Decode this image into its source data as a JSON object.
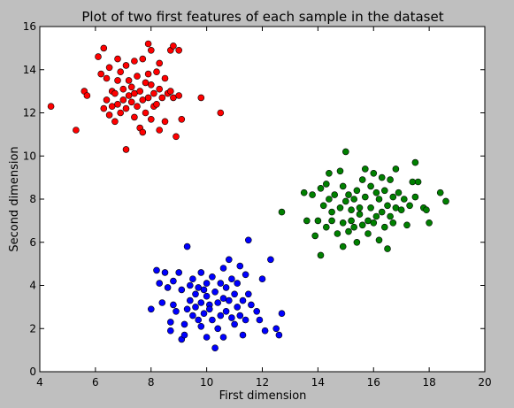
{
  "chart_data": {
    "type": "scatter",
    "title": "Plot of two first features of each sample in the dataset",
    "xlabel": "First dimension",
    "ylabel": "Second dimension",
    "xlim": [
      4,
      20
    ],
    "ylim": [
      0,
      16
    ],
    "x_ticks": [
      "4",
      "6",
      "8",
      "10",
      "12",
      "14",
      "16",
      "18",
      "20"
    ],
    "y_ticks": [
      "0",
      "2",
      "4",
      "6",
      "8",
      "10",
      "12",
      "14",
      "16"
    ],
    "grid": false,
    "legend": "none",
    "series": [
      {
        "color": "#ff0000",
        "points": [
          [
            4.4,
            12.3
          ],
          [
            5.3,
            11.2
          ],
          [
            5.6,
            13.0
          ],
          [
            5.7,
            12.8
          ],
          [
            6.1,
            14.6
          ],
          [
            6.2,
            13.8
          ],
          [
            6.3,
            15.0
          ],
          [
            6.3,
            12.2
          ],
          [
            6.4,
            13.6
          ],
          [
            6.4,
            12.6
          ],
          [
            6.5,
            14.1
          ],
          [
            6.5,
            11.9
          ],
          [
            6.6,
            13.0
          ],
          [
            6.6,
            12.3
          ],
          [
            6.7,
            12.9
          ],
          [
            6.7,
            11.6
          ],
          [
            6.8,
            14.5
          ],
          [
            6.8,
            13.5
          ],
          [
            6.8,
            12.4
          ],
          [
            6.9,
            13.9
          ],
          [
            6.9,
            12.0
          ],
          [
            7.0,
            13.1
          ],
          [
            7.0,
            12.6
          ],
          [
            7.1,
            14.2
          ],
          [
            7.1,
            12.2
          ],
          [
            7.1,
            10.3
          ],
          [
            7.2,
            13.5
          ],
          [
            7.2,
            12.8
          ],
          [
            7.3,
            13.2
          ],
          [
            7.3,
            12.5
          ],
          [
            7.4,
            14.4
          ],
          [
            7.4,
            12.9
          ],
          [
            7.4,
            11.8
          ],
          [
            7.5,
            13.7
          ],
          [
            7.5,
            12.3
          ],
          [
            7.6,
            13.0
          ],
          [
            7.6,
            11.3
          ],
          [
            7.7,
            14.5
          ],
          [
            7.7,
            12.6
          ],
          [
            7.7,
            11.1
          ],
          [
            7.8,
            13.4
          ],
          [
            7.8,
            12.0
          ],
          [
            7.9,
            15.2
          ],
          [
            7.9,
            13.8
          ],
          [
            7.9,
            12.7
          ],
          [
            8.0,
            14.9
          ],
          [
            8.0,
            13.3
          ],
          [
            8.0,
            11.7
          ],
          [
            8.1,
            12.9
          ],
          [
            8.1,
            12.3
          ],
          [
            8.2,
            13.9
          ],
          [
            8.2,
            12.4
          ],
          [
            8.3,
            14.3
          ],
          [
            8.3,
            13.1
          ],
          [
            8.3,
            11.2
          ],
          [
            8.4,
            12.7
          ],
          [
            8.5,
            13.6
          ],
          [
            8.5,
            11.6
          ],
          [
            8.6,
            12.9
          ],
          [
            8.7,
            14.9
          ],
          [
            8.7,
            13.0
          ],
          [
            8.8,
            15.1
          ],
          [
            8.8,
            12.7
          ],
          [
            8.9,
            10.9
          ],
          [
            9.0,
            14.9
          ],
          [
            9.0,
            12.8
          ],
          [
            9.1,
            11.7
          ],
          [
            9.8,
            12.7
          ],
          [
            10.5,
            12.0
          ]
        ]
      },
      {
        "color": "#0000ff",
        "points": [
          [
            8.0,
            2.9
          ],
          [
            8.2,
            4.7
          ],
          [
            8.3,
            4.1
          ],
          [
            8.4,
            3.2
          ],
          [
            8.5,
            4.6
          ],
          [
            8.6,
            3.9
          ],
          [
            8.7,
            2.3
          ],
          [
            8.7,
            1.9
          ],
          [
            8.8,
            4.2
          ],
          [
            8.8,
            3.1
          ],
          [
            8.9,
            2.8
          ],
          [
            9.0,
            4.6
          ],
          [
            9.1,
            3.8
          ],
          [
            9.1,
            1.5
          ],
          [
            9.2,
            2.2
          ],
          [
            9.2,
            1.7
          ],
          [
            9.3,
            5.8
          ],
          [
            9.3,
            2.9
          ],
          [
            9.4,
            4.0
          ],
          [
            9.4,
            3.3
          ],
          [
            9.5,
            4.3
          ],
          [
            9.5,
            2.6
          ],
          [
            9.6,
            3.6
          ],
          [
            9.6,
            3.0
          ],
          [
            9.7,
            3.9
          ],
          [
            9.7,
            2.4
          ],
          [
            9.8,
            4.6
          ],
          [
            9.8,
            3.2
          ],
          [
            9.8,
            2.1
          ],
          [
            9.9,
            3.8
          ],
          [
            9.9,
            2.7
          ],
          [
            10.0,
            4.1
          ],
          [
            10.0,
            3.5
          ],
          [
            10.0,
            1.6
          ],
          [
            10.1,
            3.1
          ],
          [
            10.1,
            2.9
          ],
          [
            10.2,
            4.4
          ],
          [
            10.2,
            2.4
          ],
          [
            10.3,
            3.7
          ],
          [
            10.3,
            1.1
          ],
          [
            10.4,
            3.2
          ],
          [
            10.4,
            2.0
          ],
          [
            10.5,
            4.1
          ],
          [
            10.5,
            2.6
          ],
          [
            10.6,
            4.8
          ],
          [
            10.6,
            3.4
          ],
          [
            10.6,
            1.6
          ],
          [
            10.7,
            3.9
          ],
          [
            10.7,
            2.8
          ],
          [
            10.8,
            5.2
          ],
          [
            10.8,
            3.3
          ],
          [
            10.9,
            4.3
          ],
          [
            10.9,
            2.5
          ],
          [
            11.0,
            3.6
          ],
          [
            11.0,
            2.2
          ],
          [
            11.1,
            4.1
          ],
          [
            11.1,
            3.0
          ],
          [
            11.2,
            4.9
          ],
          [
            11.2,
            2.6
          ],
          [
            11.3,
            3.3
          ],
          [
            11.3,
            1.7
          ],
          [
            11.4,
            4.5
          ],
          [
            11.4,
            2.4
          ],
          [
            11.5,
            6.1
          ],
          [
            11.5,
            3.6
          ],
          [
            11.6,
            3.1
          ],
          [
            11.8,
            2.8
          ],
          [
            11.9,
            2.4
          ],
          [
            12.0,
            4.3
          ],
          [
            12.1,
            1.9
          ],
          [
            12.3,
            5.2
          ],
          [
            12.5,
            2.0
          ],
          [
            12.6,
            1.7
          ],
          [
            12.7,
            2.7
          ]
        ]
      },
      {
        "color": "#008000",
        "points": [
          [
            12.7,
            7.4
          ],
          [
            13.5,
            8.3
          ],
          [
            13.6,
            7.0
          ],
          [
            13.8,
            8.2
          ],
          [
            13.9,
            6.3
          ],
          [
            14.0,
            7.0
          ],
          [
            14.1,
            8.5
          ],
          [
            14.1,
            5.4
          ],
          [
            14.2,
            7.7
          ],
          [
            14.3,
            8.7
          ],
          [
            14.3,
            6.7
          ],
          [
            14.4,
            9.2
          ],
          [
            14.4,
            8.0
          ],
          [
            14.5,
            7.4
          ],
          [
            14.5,
            7.0
          ],
          [
            14.6,
            8.2
          ],
          [
            14.7,
            6.4
          ],
          [
            14.8,
            9.3
          ],
          [
            14.8,
            7.6
          ],
          [
            14.9,
            8.6
          ],
          [
            14.9,
            6.9
          ],
          [
            14.9,
            5.8
          ],
          [
            15.0,
            10.2
          ],
          [
            15.0,
            7.9
          ],
          [
            15.1,
            8.2
          ],
          [
            15.1,
            6.5
          ],
          [
            15.2,
            7.5
          ],
          [
            15.2,
            7.0
          ],
          [
            15.3,
            8.0
          ],
          [
            15.3,
            6.7
          ],
          [
            15.4,
            8.4
          ],
          [
            15.4,
            6.0
          ],
          [
            15.5,
            7.6
          ],
          [
            15.5,
            7.3
          ],
          [
            15.6,
            8.9
          ],
          [
            15.6,
            6.8
          ],
          [
            15.7,
            9.4
          ],
          [
            15.7,
            8.1
          ],
          [
            15.8,
            7.0
          ],
          [
            15.8,
            6.4
          ],
          [
            15.9,
            8.6
          ],
          [
            15.9,
            7.6
          ],
          [
            16.0,
            9.2
          ],
          [
            16.0,
            6.9
          ],
          [
            16.1,
            8.3
          ],
          [
            16.1,
            7.2
          ],
          [
            16.2,
            8.0
          ],
          [
            16.2,
            6.1
          ],
          [
            16.3,
            9.0
          ],
          [
            16.3,
            7.4
          ],
          [
            16.4,
            8.4
          ],
          [
            16.4,
            6.7
          ],
          [
            16.5,
            7.7
          ],
          [
            16.5,
            5.7
          ],
          [
            16.6,
            8.9
          ],
          [
            16.6,
            7.2
          ],
          [
            16.7,
            8.1
          ],
          [
            16.7,
            6.9
          ],
          [
            16.8,
            9.4
          ],
          [
            16.8,
            7.6
          ],
          [
            16.9,
            8.3
          ],
          [
            17.0,
            7.5
          ],
          [
            17.1,
            8.0
          ],
          [
            17.2,
            6.8
          ],
          [
            17.3,
            7.7
          ],
          [
            17.4,
            8.8
          ],
          [
            17.5,
            9.7
          ],
          [
            17.5,
            8.1
          ],
          [
            17.6,
            8.8
          ],
          [
            17.8,
            7.6
          ],
          [
            17.9,
            7.5
          ],
          [
            18.0,
            6.9
          ],
          [
            18.4,
            8.3
          ],
          [
            18.6,
            7.9
          ]
        ]
      }
    ]
  }
}
